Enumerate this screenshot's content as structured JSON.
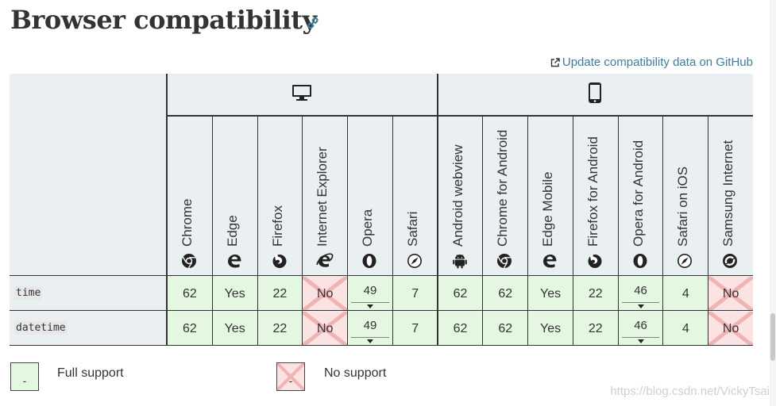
{
  "page": {
    "title": "Browser compatibility",
    "update_link": "Update compatibility data on GitHub",
    "watermark": "https://blog.csdn.net/VickyTsai"
  },
  "platforms": [
    {
      "name": "desktop",
      "icon": "desktop-icon"
    },
    {
      "name": "mobile",
      "icon": "mobile-icon"
    }
  ],
  "browsers": [
    {
      "name": "Chrome",
      "icon": "chrome-icon",
      "platform": "desktop"
    },
    {
      "name": "Edge",
      "icon": "edge-icon",
      "platform": "desktop"
    },
    {
      "name": "Firefox",
      "icon": "firefox-icon",
      "platform": "desktop"
    },
    {
      "name": "Internet Explorer",
      "icon": "ie-icon",
      "platform": "desktop"
    },
    {
      "name": "Opera",
      "icon": "opera-icon",
      "platform": "desktop"
    },
    {
      "name": "Safari",
      "icon": "safari-icon",
      "platform": "desktop"
    },
    {
      "name": "Android webview",
      "icon": "android-icon",
      "platform": "mobile"
    },
    {
      "name": "Chrome for Android",
      "icon": "chrome-icon",
      "platform": "mobile"
    },
    {
      "name": "Edge Mobile",
      "icon": "edge-icon",
      "platform": "mobile"
    },
    {
      "name": "Firefox for Android",
      "icon": "firefox-icon",
      "platform": "mobile"
    },
    {
      "name": "Opera for Android",
      "icon": "opera-icon",
      "platform": "mobile"
    },
    {
      "name": "Safari on iOS",
      "icon": "safari-icon",
      "platform": "mobile"
    },
    {
      "name": "Samsung Internet",
      "icon": "samsung-icon",
      "platform": "mobile"
    }
  ],
  "rows": [
    {
      "feature": "time",
      "cells": [
        {
          "value": "62",
          "support": "yes"
        },
        {
          "value": "Yes",
          "support": "yes"
        },
        {
          "value": "22",
          "support": "yes"
        },
        {
          "value": "No",
          "support": "no"
        },
        {
          "value": "49",
          "support": "yes",
          "dropdown": true
        },
        {
          "value": "7",
          "support": "yes"
        },
        {
          "value": "62",
          "support": "yes"
        },
        {
          "value": "62",
          "support": "yes"
        },
        {
          "value": "Yes",
          "support": "yes"
        },
        {
          "value": "22",
          "support": "yes"
        },
        {
          "value": "46",
          "support": "yes",
          "dropdown": true
        },
        {
          "value": "4",
          "support": "yes"
        },
        {
          "value": "No",
          "support": "no"
        }
      ]
    },
    {
      "feature": "datetime",
      "cells": [
        {
          "value": "62",
          "support": "yes"
        },
        {
          "value": "Yes",
          "support": "yes"
        },
        {
          "value": "22",
          "support": "yes"
        },
        {
          "value": "No",
          "support": "no"
        },
        {
          "value": "49",
          "support": "yes",
          "dropdown": true
        },
        {
          "value": "7",
          "support": "yes"
        },
        {
          "value": "62",
          "support": "yes"
        },
        {
          "value": "62",
          "support": "yes"
        },
        {
          "value": "Yes",
          "support": "yes"
        },
        {
          "value": "22",
          "support": "yes"
        },
        {
          "value": "46",
          "support": "yes",
          "dropdown": true
        },
        {
          "value": "4",
          "support": "yes"
        },
        {
          "value": "No",
          "support": "no"
        }
      ]
    }
  ],
  "legend": [
    {
      "label": "Full support",
      "support": "yes",
      "mark": "-"
    },
    {
      "label": "No support",
      "support": "no",
      "mark": "-"
    }
  ],
  "colors": {
    "yes": "#e4f8e1",
    "no": "#fce3e3",
    "no_cross": "#f0b3b3",
    "link": "#3d7e9a",
    "header_bg": "#eaeff2"
  }
}
